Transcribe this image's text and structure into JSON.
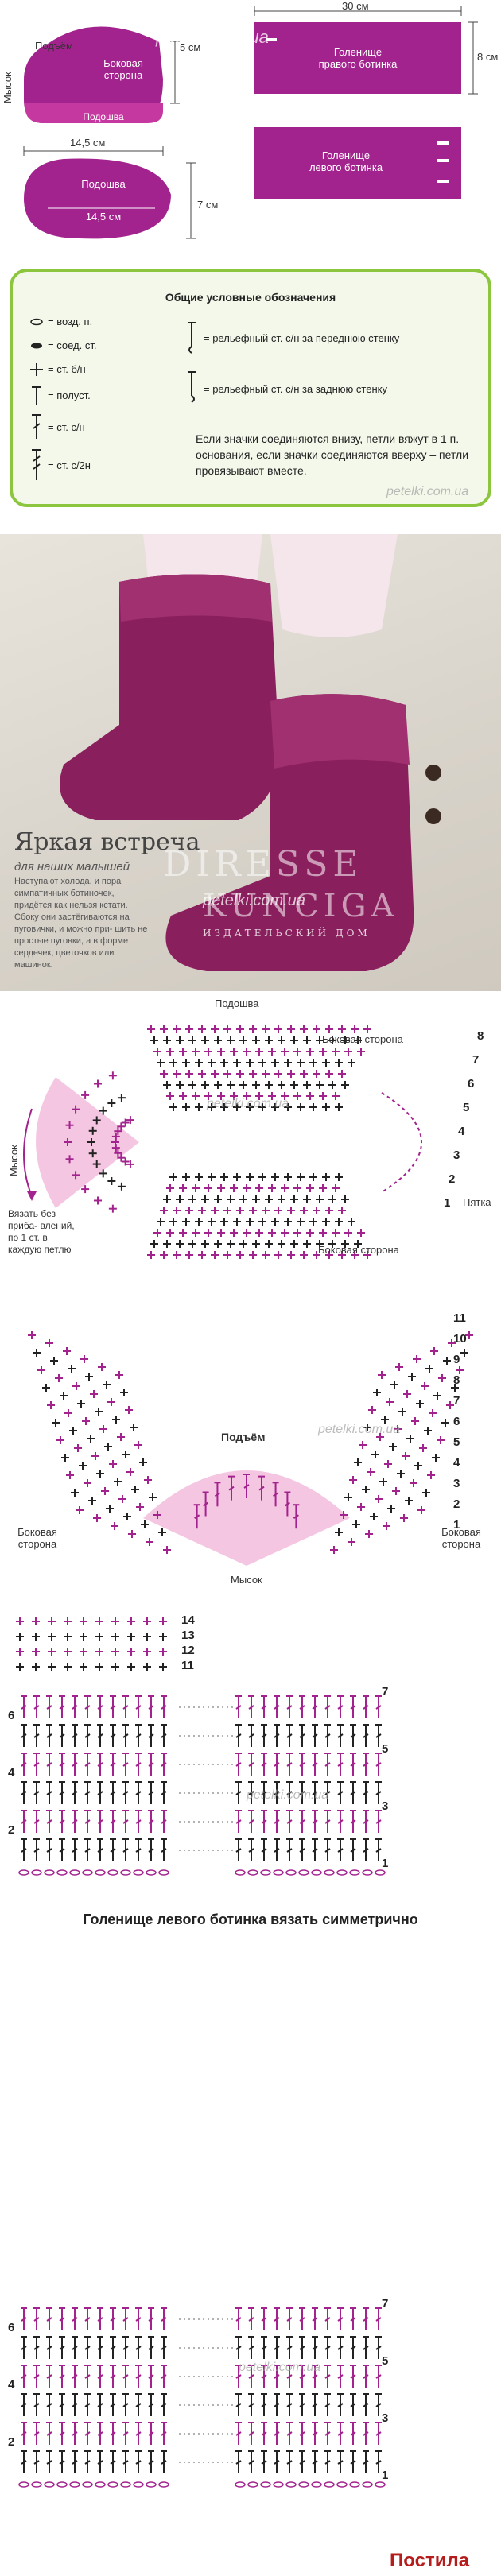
{
  "patterns": {
    "sole_side_piece": {
      "label": "Боковая\nсторона",
      "sole_label": "Подошва",
      "toe_side_label": "Подъём",
      "toe_label": "Мысок",
      "width": "14,5 см",
      "height": "5 см"
    },
    "sole": {
      "label": "Подошва",
      "width": "14,5 см",
      "height": "7 см"
    },
    "shaft_right": {
      "label": "Голенище\nправого ботинка",
      "width": "30 см",
      "height": "8 см"
    },
    "shaft_left": {
      "label": "Голенище\nлевого ботинка"
    },
    "watermark": "petelki.com.ua",
    "colors": {
      "magenta": "#a3238e",
      "pink_light": "#f5c6e1",
      "green": "#8cc63f"
    }
  },
  "legend": {
    "title": "Общие условные обозначения",
    "items": [
      {
        "symbol": "ch",
        "text": "= возд. п."
      },
      {
        "symbol": "sl",
        "text": "= соед. ст."
      },
      {
        "symbol": "sc",
        "text": "= ст. б/н"
      },
      {
        "symbol": "hdc",
        "text": "= полуст."
      },
      {
        "symbol": "dc",
        "text": "= ст. с/н"
      },
      {
        "symbol": "tr",
        "text": "= ст. с/2н"
      }
    ],
    "relief": [
      {
        "symbol": "fpdc",
        "text": "= рельефный ст. с/н за переднюю стенку"
      },
      {
        "symbol": "bpdc",
        "text": "= рельефный ст. с/н за заднюю стенку"
      }
    ],
    "note": "Если значки соединяются внизу, петли вяжут в 1 п. основания, если значки соединяются вверху – петли провязывают вместе.",
    "watermark": "petelki.com.ua"
  },
  "photo": {
    "title": "Яркая встреча",
    "subtitle": "для наших малышей",
    "text": "Наступают холода, и пора симпатичных ботиночек, придётся как нельзя кстати. Сбоку они застёгиваются на пуговички, и можно при- шить не простые пуговки, а в форме сердечек, цветочков или машинок.",
    "brand_top": "DIRESSE",
    "brand_bottom": "KUNCIGA",
    "brand_small": "ИЗДАТЕЛЬСКИЙ ДОМ",
    "watermark": "petelki.com.ua"
  },
  "sole_chart": {
    "sole_label": "Подошва",
    "side_top_label": "Боковая сторона",
    "side_bottom_label": "Боковая сторона",
    "toe_label": "Мысок",
    "heel_label": "Пятка",
    "instruction": "Вязать без приба- влений, по 1 ст. в каждую петлю",
    "row_numbers": [
      "8",
      "7",
      "6",
      "5",
      "4",
      "3",
      "2",
      "1"
    ],
    "watermark": "petelki.com.ua"
  },
  "instep_chart": {
    "title": "Подъём",
    "left_label": "Боковая сторона",
    "right_label": "Боковая сторона",
    "toe_label": "Мысок",
    "row_numbers": [
      "11",
      "10",
      "9",
      "8",
      "7",
      "6",
      "5",
      "4",
      "3",
      "2",
      "1"
    ],
    "watermark": "petelki.com.ua"
  },
  "shaft_chart_right": {
    "top_rows": [
      "14",
      "13",
      "12",
      "11"
    ],
    "left_rows": [
      "6",
      "4",
      "2"
    ],
    "right_rows": [
      "7",
      "5",
      "3",
      "1"
    ],
    "watermark": "petelki.com.ua"
  },
  "shaft_left_heading": "Голенище левого ботинка вязать симметрично",
  "shaft_chart_left": {
    "left_rows": [
      "6",
      "4",
      "2"
    ],
    "right_rows": [
      "7",
      "5",
      "3",
      "1"
    ],
    "watermark": "petelki.com.ua",
    "logo": "Постила"
  }
}
